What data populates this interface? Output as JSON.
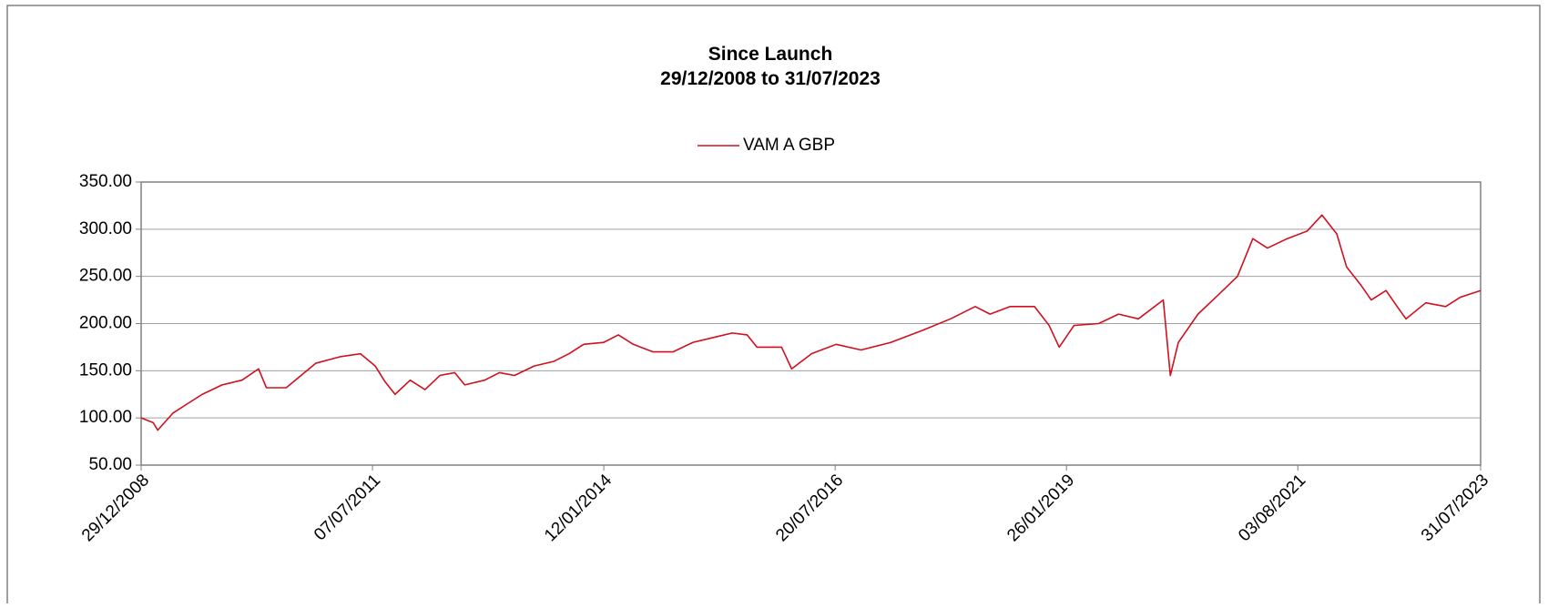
{
  "chart_data": {
    "type": "line",
    "title": "Since Launch",
    "subtitle": "29/12/2008 to 31/07/2023",
    "legend": "top",
    "grid": true,
    "x": [
      "29/12/2008",
      "15/02/2009",
      "05/03/2009",
      "04/05/2009",
      "01/07/2009",
      "29/08/2009",
      "16/11/2009",
      "03/02/2010",
      "10/04/2010",
      "11/05/2010",
      "29/07/2010",
      "26/09/2010",
      "24/11/2010",
      "03/03/2011",
      "20/05/2011",
      "18/07/2011",
      "27/08/2011",
      "05/10/2011",
      "04/12/2011",
      "01/02/2012",
      "31/03/2012",
      "29/05/2012",
      "08/07/2012",
      "25/09/2012",
      "23/11/2012",
      "22/01/2013",
      "10/04/2013",
      "28/06/2013",
      "26/08/2013",
      "24/10/2013",
      "11/01/2014",
      "11/03/2014",
      "09/05/2014",
      "27/07/2014",
      "14/10/2014",
      "01/01/2015",
      "20/03/2015",
      "07/06/2015",
      "05/08/2015",
      "13/09/2015",
      "20/12/2015",
      "29/01/2016",
      "17/04/2016",
      "24/07/2016",
      "31/10/2016",
      "26/02/2017",
      "25/06/2017",
      "22/10/2017",
      "28/01/2018",
      "28/03/2018",
      "15/06/2018",
      "21/09/2018",
      "18/11/2018",
      "28/12/2018",
      "25/02/2019",
      "03/06/2019",
      "21/08/2019",
      "08/11/2019",
      "15/02/2020",
      "14/03/2020",
      "15/04/2020",
      "02/07/2020",
      "19/09/2020",
      "06/12/2020",
      "05/02/2021",
      "04/04/2021",
      "22/06/2021",
      "09/09/2021",
      "07/11/2021",
      "05/01/2022",
      "13/02/2022",
      "13/04/2022",
      "22/05/2022",
      "20/07/2022",
      "28/08/2022",
      "07/10/2022",
      "25/12/2022",
      "14/03/2023",
      "12/05/2023",
      "31/07/2023"
    ],
    "series": [
      {
        "name": "VAM A GBP",
        "color": "#d0101e",
        "values": [
          100,
          95,
          87,
          105,
          115,
          125,
          135,
          140,
          152,
          132,
          132,
          145,
          158,
          165,
          168,
          155,
          138,
          125,
          140,
          130,
          145,
          148,
          135,
          140,
          148,
          145,
          155,
          160,
          168,
          178,
          180,
          188,
          178,
          170,
          170,
          180,
          185,
          190,
          188,
          175,
          175,
          152,
          168,
          178,
          172,
          180,
          192,
          205,
          218,
          210,
          218,
          218,
          198,
          175,
          198,
          200,
          210,
          205,
          225,
          145,
          180,
          210,
          230,
          250,
          290,
          280,
          290,
          298,
          315,
          295,
          260,
          240,
          225,
          235,
          220,
          205,
          222,
          218,
          228,
          235
        ]
      }
    ],
    "xlim": [
      "29/12/2008",
      "31/07/2023"
    ],
    "xticks": [
      "29/12/2008",
      "07/07/2011",
      "12/01/2014",
      "20/07/2016",
      "26/01/2019",
      "03/08/2021",
      "31/07/2023"
    ],
    "ylim": [
      50,
      350
    ],
    "yticks": [
      {
        "value": 50,
        "label": "50.00"
      },
      {
        "value": 100,
        "label": "100.00"
      },
      {
        "value": 150,
        "label": "150.00"
      },
      {
        "value": 200,
        "label": "200.00"
      },
      {
        "value": 250,
        "label": "250.00"
      },
      {
        "value": 300,
        "label": "300.00"
      },
      {
        "value": 350,
        "label": "350.00"
      }
    ]
  }
}
